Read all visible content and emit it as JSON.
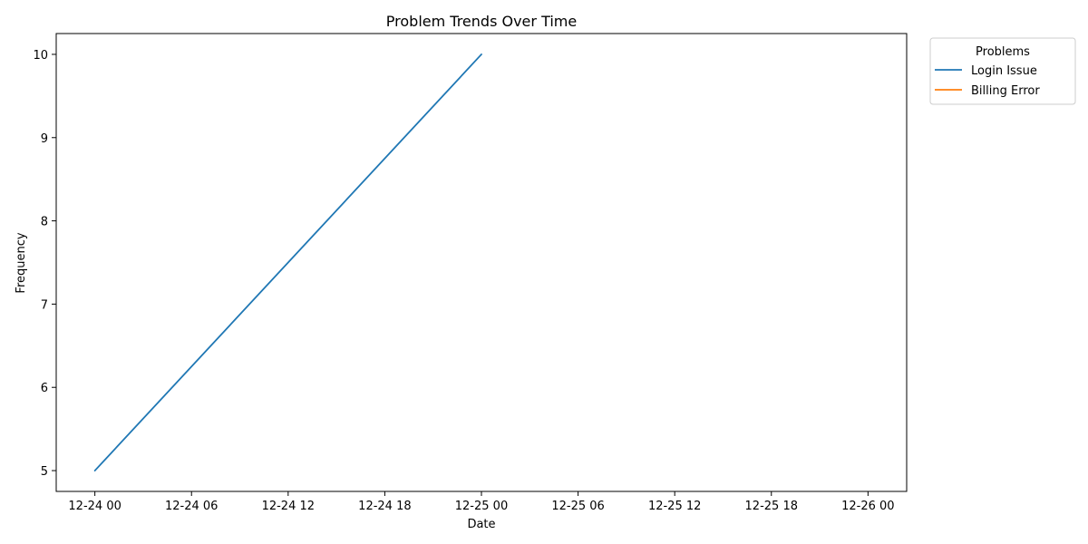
{
  "chart_data": {
    "type": "line",
    "title": "Problem Trends Over Time",
    "xlabel": "Date",
    "ylabel": "Frequency",
    "xlim": [
      "2023-12-23T21:36",
      "2023-12-26T02:24"
    ],
    "ylim": [
      4.75,
      10.25
    ],
    "x_ticks": [
      "12-24 00",
      "12-24 06",
      "12-24 12",
      "12-24 18",
      "12-25 00",
      "12-25 06",
      "12-25 12",
      "12-25 18",
      "12-26 00"
    ],
    "y_ticks": [
      "5",
      "6",
      "7",
      "8",
      "9",
      "10"
    ],
    "grid": false,
    "legend": {
      "title": "Problems",
      "placement": "outside-top-right"
    },
    "series": [
      {
        "name": "Login Issue",
        "color": "#1f77b4",
        "x": [
          "2023-12-24T00:00",
          "2023-12-25T00:00"
        ],
        "values": [
          5,
          10
        ]
      },
      {
        "name": "Billing Error",
        "color": "#ff7f0e",
        "x": [],
        "values": []
      }
    ]
  }
}
